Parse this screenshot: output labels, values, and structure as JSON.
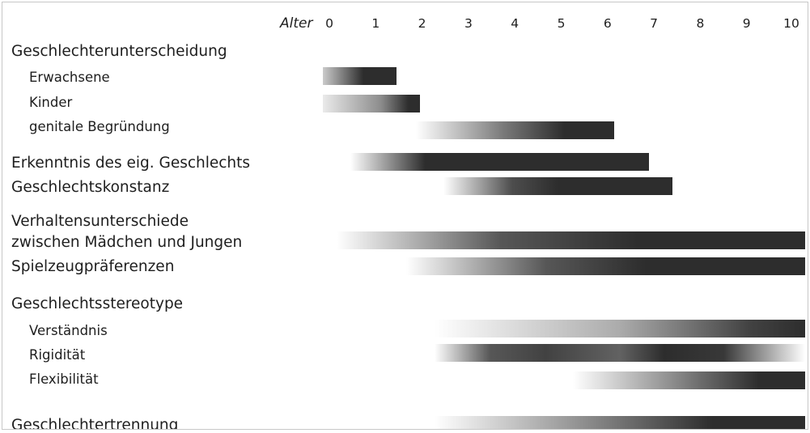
{
  "axis": {
    "label": "Alter",
    "ticks": [
      "0",
      "1",
      "2",
      "3",
      "4",
      "5",
      "6",
      "7",
      "8",
      "9",
      "10"
    ]
  },
  "rows": [
    {
      "id": "geschlechterunterscheidung",
      "label": "Geschlechterunterscheidung",
      "level": "main",
      "bar": null
    },
    {
      "id": "erwachsene",
      "label": "Erwachsene",
      "level": "sub",
      "bar": {
        "start": 0,
        "end": 1.45,
        "gradient": [
          [
            0,
            0.25
          ],
          [
            0.55,
            1.0
          ],
          [
            1,
            1.0
          ]
        ]
      }
    },
    {
      "id": "kinder",
      "label": "Kinder",
      "level": "sub",
      "bar": {
        "start": 0,
        "end": 1.95,
        "gradient": [
          [
            0,
            0.1
          ],
          [
            0.6,
            0.55
          ],
          [
            0.88,
            1.0
          ],
          [
            1,
            1.0
          ]
        ]
      }
    },
    {
      "id": "genitale-begruendung",
      "label": "genitale Begründung",
      "level": "sub",
      "bar": {
        "start": 2.0,
        "end": 6.15,
        "gradient": [
          [
            0,
            0.0
          ],
          [
            0.45,
            0.65
          ],
          [
            0.75,
            1.0
          ],
          [
            1,
            1.0
          ]
        ]
      }
    },
    {
      "id": "erkenntnis",
      "label": "Erkenntnis des eig. Geschlechts",
      "level": "main",
      "bar": {
        "start": 0.6,
        "end": 6.9,
        "gradient": [
          [
            0,
            0.0
          ],
          [
            0.25,
            1.0
          ],
          [
            1,
            1.0
          ]
        ]
      }
    },
    {
      "id": "geschlechtskonstanz",
      "label": "Geschlechtskonstanz",
      "level": "main",
      "bar": {
        "start": 2.6,
        "end": 7.4,
        "gradient": [
          [
            0,
            0.0
          ],
          [
            0.3,
            0.85
          ],
          [
            0.5,
            1.0
          ],
          [
            1,
            1.0
          ]
        ]
      }
    },
    {
      "id": "verhaltensunterschiede",
      "label": "Verhaltensunterschiede",
      "label2": "zwischen Mädchen und Jungen",
      "level": "main",
      "bar": {
        "start": 0.3,
        "end": 10.3,
        "gradient": [
          [
            0,
            0.0
          ],
          [
            0.35,
            0.8
          ],
          [
            0.65,
            1.0
          ],
          [
            1,
            1.0
          ]
        ]
      }
    },
    {
      "id": "spielzeugpraeferenzen",
      "label": "Spielzeugpräferenzen",
      "level": "main",
      "bar": {
        "start": 1.8,
        "end": 10.3,
        "gradient": [
          [
            0,
            0.0
          ],
          [
            0.35,
            0.8
          ],
          [
            0.6,
            1.0
          ],
          [
            1,
            1.0
          ]
        ]
      }
    },
    {
      "id": "geschlechtsstereotype",
      "label": "Geschlechtsstereotype",
      "level": "main",
      "bar": null
    },
    {
      "id": "verstaendnis",
      "label": "Verständnis",
      "level": "sub",
      "bar": {
        "start": 2.4,
        "end": 10.3,
        "gradient": [
          [
            0,
            0.0
          ],
          [
            0.5,
            0.4
          ],
          [
            0.85,
            0.9
          ],
          [
            1,
            1.0
          ]
        ]
      }
    },
    {
      "id": "rigiditaet",
      "label": "Rigidität",
      "level": "sub",
      "bar": {
        "start": 2.4,
        "end": 10.3,
        "gradient": [
          [
            0,
            0.0
          ],
          [
            0.15,
            0.8
          ],
          [
            0.3,
            0.9
          ],
          [
            0.5,
            0.75
          ],
          [
            0.62,
            1.0
          ],
          [
            0.78,
            0.95
          ],
          [
            1,
            0.0
          ]
        ]
      }
    },
    {
      "id": "flexibilitaet",
      "label": "Flexibilität",
      "level": "sub",
      "bar": {
        "start": 5.4,
        "end": 10.3,
        "gradient": [
          [
            0,
            0.0
          ],
          [
            0.55,
            0.7
          ],
          [
            0.8,
            1.0
          ],
          [
            1,
            1.0
          ]
        ]
      }
    },
    {
      "id": "geschlechtertrennung",
      "label": "Geschlechtertrennung",
      "level": "main",
      "bar": {
        "start": 2.4,
        "end": 10.3,
        "gradient": [
          [
            0,
            0.0
          ],
          [
            0.45,
            0.6
          ],
          [
            0.75,
            1.0
          ],
          [
            1,
            1.0
          ]
        ]
      }
    }
  ],
  "colors": {
    "bar_dark": "#2d2d2d",
    "bar_light": "#ffffff",
    "text": "#1e1e1e",
    "border": "#c8c8c8"
  }
}
